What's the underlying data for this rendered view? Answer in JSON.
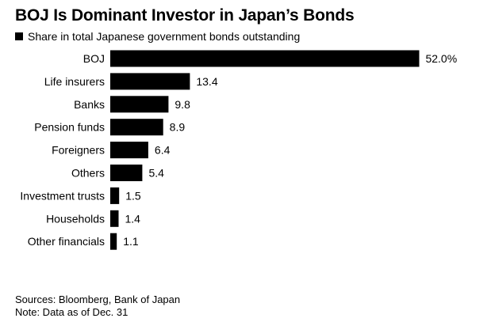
{
  "header": {
    "title": "BOJ Is Dominant Investor in Japan’s Bonds",
    "legend_label": "Share in total Japanese government bonds outstanding"
  },
  "footer": {
    "sources": "Sources: Bloomberg, Bank of Japan",
    "note": "Note: Data as of Dec. 31"
  },
  "chart_data": {
    "type": "bar",
    "orientation": "horizontal",
    "title": "BOJ Is Dominant Investor in Japan’s Bonds",
    "categories": [
      "BOJ",
      "Life insurers",
      "Banks",
      "Pension funds",
      "Foreigners",
      "Others",
      "Investment trusts",
      "Households",
      "Other financials"
    ],
    "series": [
      {
        "name": "Share in total Japanese government bonds outstanding",
        "values": [
          52.0,
          13.4,
          9.8,
          8.9,
          6.4,
          5.4,
          1.5,
          1.4,
          1.1
        ],
        "labels": [
          "52.0%",
          "13.4",
          "9.8",
          "8.9",
          "6.4",
          "5.4",
          "1.5",
          "1.4",
          "1.1"
        ]
      }
    ],
    "bar_color": "#000000",
    "grid": false,
    "legend_position": "top-left"
  }
}
